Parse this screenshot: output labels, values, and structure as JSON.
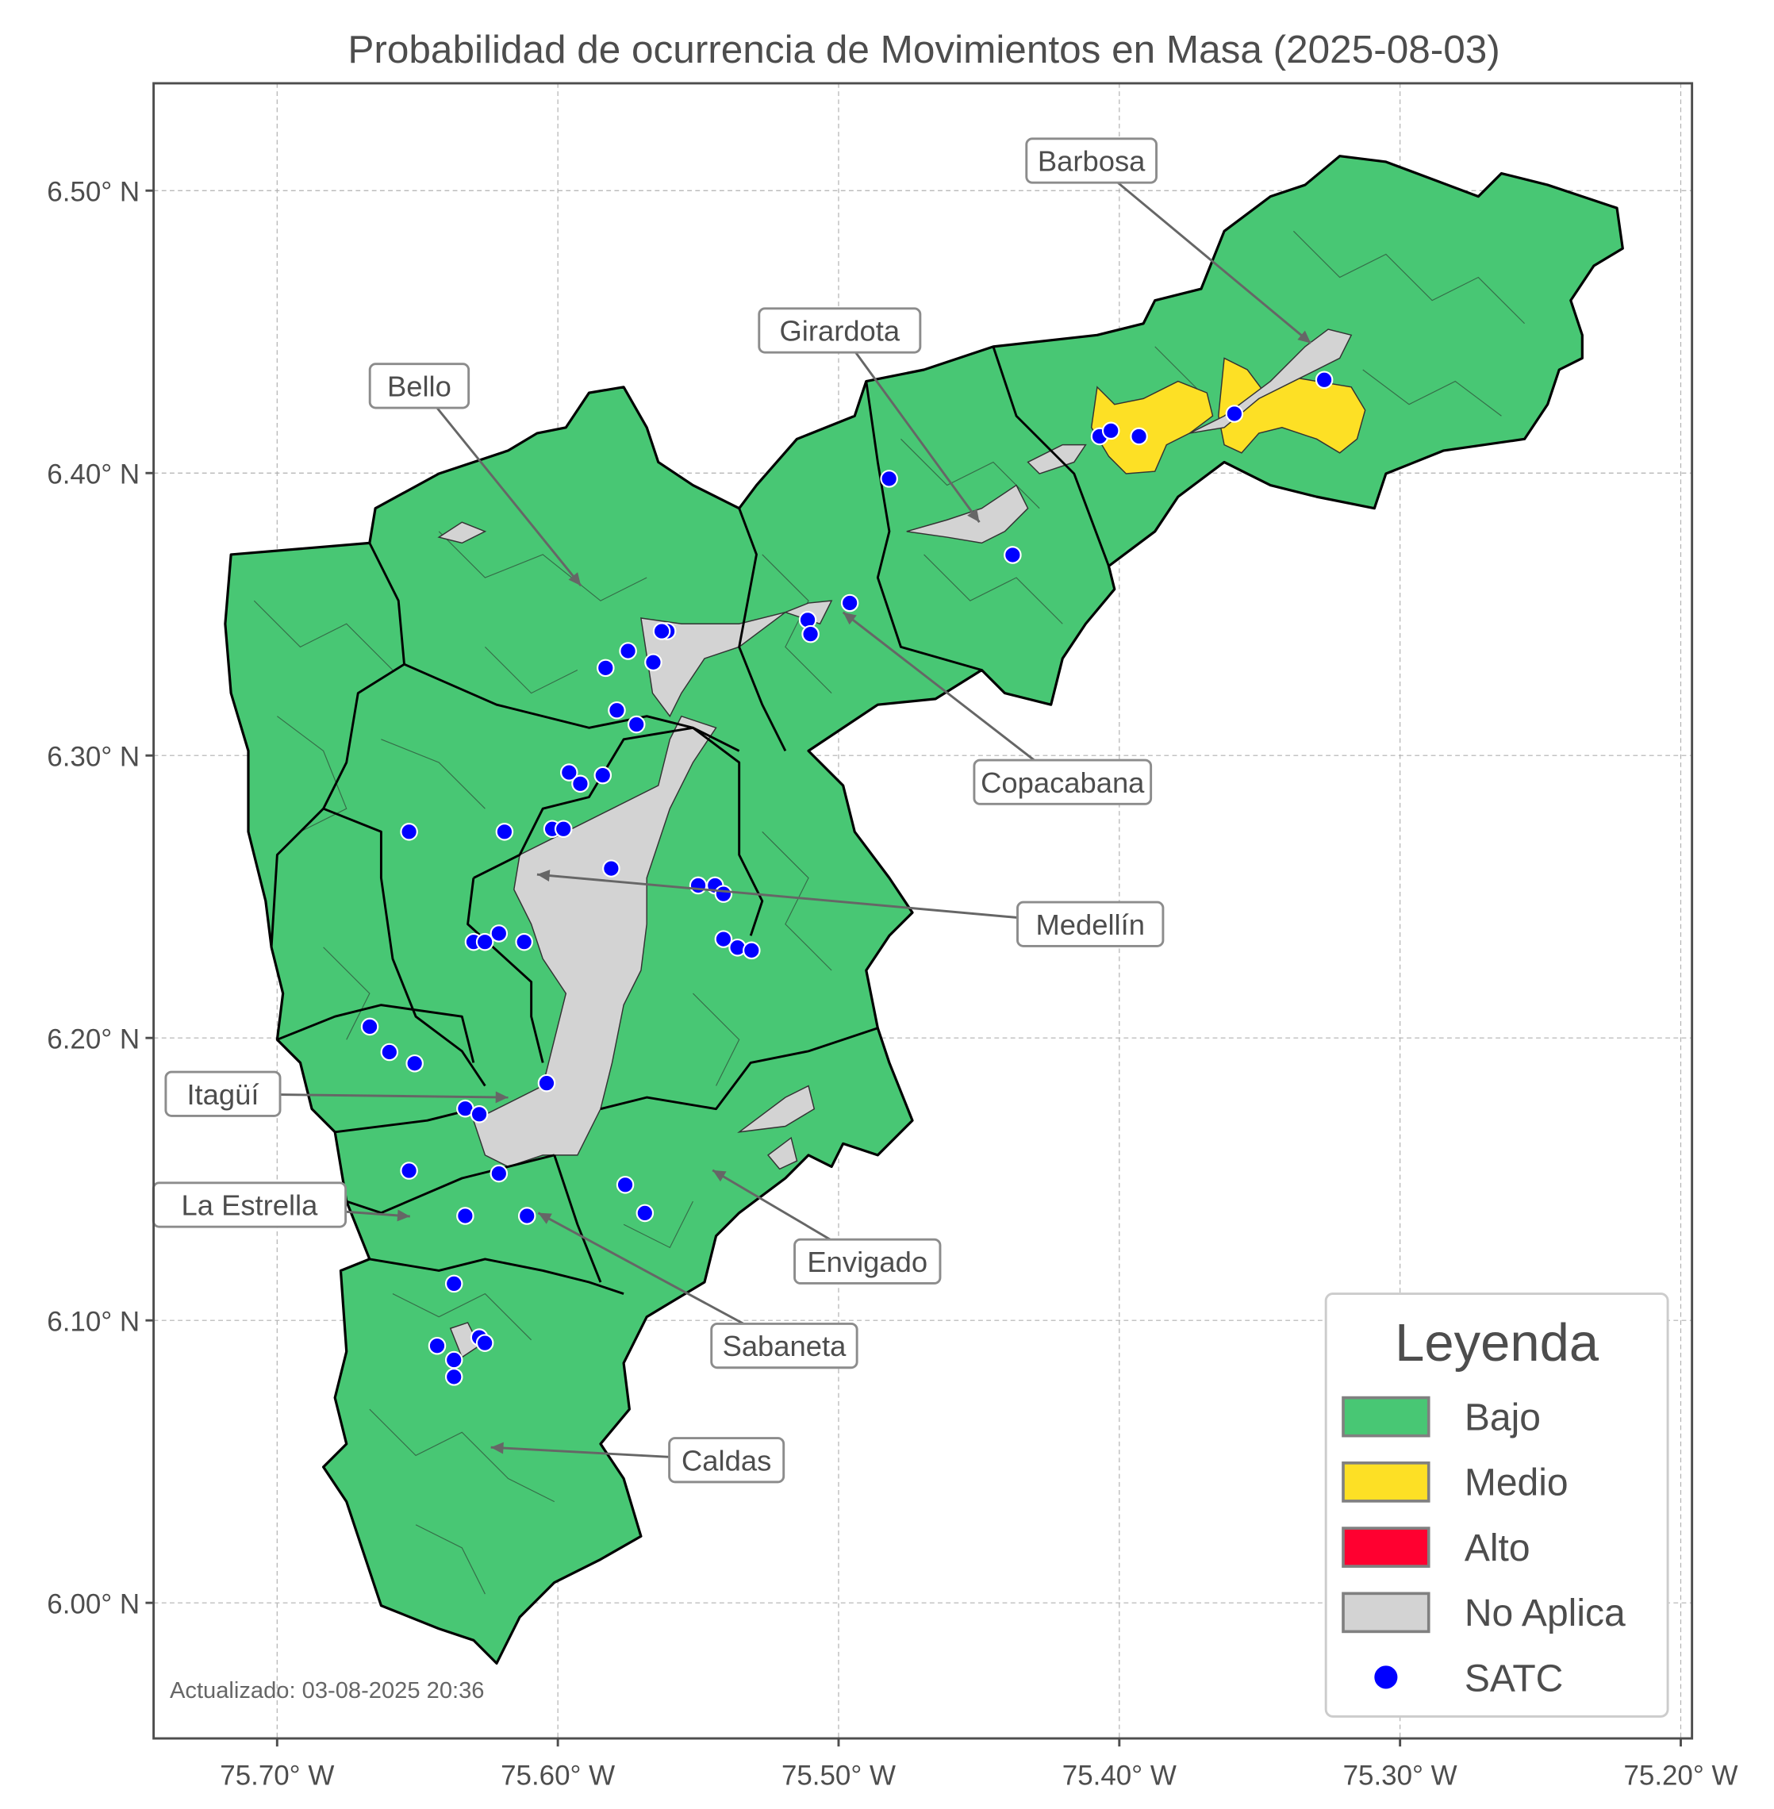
{
  "chart_data": {
    "type": "map",
    "title": "Probabilidad de ocurrencia de Movimientos en Masa (2025-08-03)",
    "xlim": [
      -75.744,
      -75.196
    ],
    "ylim": [
      5.952,
      6.538
    ],
    "grid": true,
    "x_ticks": [
      {
        "value": -75.7,
        "label": "75.70° W"
      },
      {
        "value": -75.6,
        "label": "75.60° W"
      },
      {
        "value": -75.5,
        "label": "75.50° W"
      },
      {
        "value": -75.4,
        "label": "75.40° W"
      },
      {
        "value": -75.3,
        "label": "75.30° W"
      },
      {
        "value": -75.2,
        "label": "75.20° W"
      }
    ],
    "y_ticks": [
      {
        "value": 6.5,
        "label": "6.50° N"
      },
      {
        "value": 6.4,
        "label": "6.40° N"
      },
      {
        "value": 6.3,
        "label": "6.30° N"
      },
      {
        "value": 6.2,
        "label": "6.20° N"
      },
      {
        "value": 6.1,
        "label": "6.10° N"
      },
      {
        "value": 6.0,
        "label": "6.00° N"
      }
    ],
    "legend": {
      "title": "Leyenda",
      "placement": "bottom-right",
      "items": [
        {
          "label": "Bajo",
          "color": "#48c774",
          "kind": "patch"
        },
        {
          "label": "Medio",
          "color": "#fde025",
          "kind": "patch"
        },
        {
          "label": "Alto",
          "color": "#ff0030",
          "kind": "patch"
        },
        {
          "label": "No Aplica",
          "color": "#d3d3d3",
          "kind": "patch"
        },
        {
          "label": "SATC",
          "color": "#0000ff",
          "kind": "point"
        }
      ]
    },
    "municipality_labels": [
      "Barbosa",
      "Girardota",
      "Bello",
      "Copacabana",
      "Medellín",
      "Itagüí",
      "La Estrella",
      "Envigado",
      "Sabaneta",
      "Caldas"
    ],
    "satc_stations": [
      [
        -75.482,
        6.398
      ],
      [
        -75.438,
        6.371
      ],
      [
        -75.496,
        6.354
      ],
      [
        -75.511,
        6.348
      ],
      [
        -75.51,
        6.343
      ],
      [
        -75.561,
        6.344
      ],
      [
        -75.563,
        6.344
      ],
      [
        -75.575,
        6.337
      ],
      [
        -75.566,
        6.333
      ],
      [
        -75.583,
        6.331
      ],
      [
        -75.579,
        6.316
      ],
      [
        -75.572,
        6.311
      ],
      [
        -75.596,
        6.294
      ],
      [
        -75.592,
        6.29
      ],
      [
        -75.584,
        6.293
      ],
      [
        -75.653,
        6.273
      ],
      [
        -75.619,
        6.273
      ],
      [
        -75.602,
        6.274
      ],
      [
        -75.598,
        6.274
      ],
      [
        -75.581,
        6.26
      ],
      [
        -75.55,
        6.254
      ],
      [
        -75.544,
        6.254
      ],
      [
        -75.541,
        6.251
      ],
      [
        -75.621,
        6.237
      ],
      [
        -75.63,
        6.234
      ],
      [
        -75.626,
        6.234
      ],
      [
        -75.612,
        6.234
      ],
      [
        -75.541,
        6.235
      ],
      [
        -75.536,
        6.232
      ],
      [
        -75.531,
        6.231
      ],
      [
        -75.667,
        6.204
      ],
      [
        -75.66,
        6.195
      ],
      [
        -75.651,
        6.191
      ],
      [
        -75.604,
        6.184
      ],
      [
        -75.633,
        6.175
      ],
      [
        -75.628,
        6.173
      ],
      [
        -75.653,
        6.153
      ],
      [
        -75.621,
        6.152
      ],
      [
        -75.576,
        6.148
      ],
      [
        -75.569,
        6.138
      ],
      [
        -75.633,
        6.137
      ],
      [
        -75.611,
        6.137
      ],
      [
        -75.637,
        6.113
      ],
      [
        -75.643,
        6.091
      ],
      [
        -75.628,
        6.094
      ],
      [
        -75.626,
        6.092
      ],
      [
        -75.637,
        6.086
      ],
      [
        -75.637,
        6.08
      ],
      [
        -75.407,
        6.413
      ],
      [
        -75.403,
        6.415
      ],
      [
        -75.393,
        6.413
      ],
      [
        -75.359,
        6.421
      ],
      [
        -75.327,
        6.433
      ]
    ],
    "footer": "Actualizado: 03-08-2025 20:36"
  }
}
